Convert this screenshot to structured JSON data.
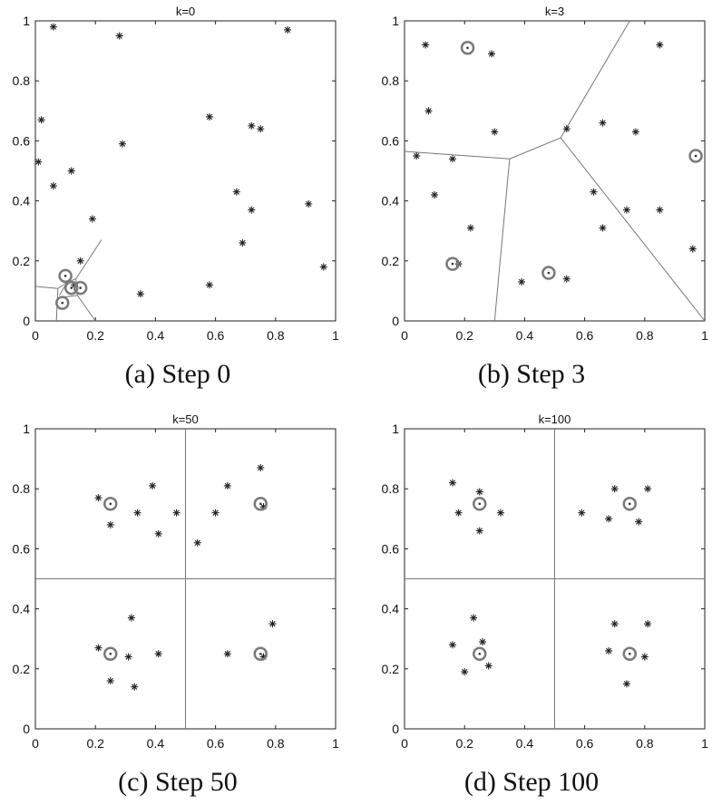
{
  "chart_data": [
    {
      "type": "scatter",
      "title": "k=0",
      "caption": "(a) Step 0",
      "xlim": [
        0,
        1
      ],
      "ylim": [
        0,
        1
      ],
      "xticks": [
        "0",
        "0.2",
        "0.4",
        "0.6",
        "0.8",
        "1"
      ],
      "yticks": [
        "0",
        "0.2",
        "0.4",
        "0.6",
        "0.8",
        "1"
      ],
      "points": [
        [
          0.06,
          0.98
        ],
        [
          0.28,
          0.95
        ],
        [
          0.84,
          0.97
        ],
        [
          0.02,
          0.67
        ],
        [
          0.58,
          0.68
        ],
        [
          0.72,
          0.65
        ],
        [
          0.75,
          0.64
        ],
        [
          0.29,
          0.59
        ],
        [
          0.01,
          0.53
        ],
        [
          0.12,
          0.5
        ],
        [
          0.06,
          0.45
        ],
        [
          0.67,
          0.43
        ],
        [
          0.91,
          0.39
        ],
        [
          0.72,
          0.37
        ],
        [
          0.19,
          0.34
        ],
        [
          0.69,
          0.26
        ],
        [
          0.15,
          0.2
        ],
        [
          0.96,
          0.18
        ],
        [
          0.58,
          0.12
        ],
        [
          0.35,
          0.09
        ],
        [
          0.13,
          0.12
        ]
      ],
      "centers": [
        [
          0.1,
          0.15
        ],
        [
          0.12,
          0.11
        ],
        [
          0.15,
          0.11
        ],
        [
          0.09,
          0.06
        ]
      ],
      "boundaries": [
        [
          [
            0.0,
            0.115
          ],
          [
            0.075,
            0.108
          ]
        ],
        [
          [
            0.075,
            0.108
          ],
          [
            0.105,
            0.128
          ]
        ],
        [
          [
            0.075,
            0.108
          ],
          [
            0.07,
            0.0
          ]
        ],
        [
          [
            0.105,
            0.128
          ],
          [
            0.135,
            0.14
          ]
        ],
        [
          [
            0.135,
            0.14
          ],
          [
            0.22,
            0.27
          ]
        ],
        [
          [
            0.105,
            0.128
          ],
          [
            0.08,
            0.085
          ]
        ],
        [
          [
            0.135,
            0.14
          ],
          [
            0.14,
            0.085
          ]
        ],
        [
          [
            0.14,
            0.085
          ],
          [
            0.1,
            0.08
          ]
        ],
        [
          [
            0.14,
            0.085
          ],
          [
            0.2,
            0.0
          ]
        ]
      ]
    },
    {
      "type": "scatter",
      "title": "k=3",
      "caption": "(b) Step 3",
      "xlim": [
        0,
        1
      ],
      "ylim": [
        0,
        1
      ],
      "xticks": [
        "0",
        "0.2",
        "0.4",
        "0.6",
        "0.8",
        "1"
      ],
      "yticks": [
        "0",
        "0.2",
        "0.4",
        "0.6",
        "0.8",
        "1"
      ],
      "points": [
        [
          0.07,
          0.92
        ],
        [
          0.29,
          0.89
        ],
        [
          0.85,
          0.92
        ],
        [
          0.08,
          0.7
        ],
        [
          0.66,
          0.66
        ],
        [
          0.77,
          0.63
        ],
        [
          0.3,
          0.63
        ],
        [
          0.54,
          0.64
        ],
        [
          0.04,
          0.55
        ],
        [
          0.16,
          0.54
        ],
        [
          0.1,
          0.42
        ],
        [
          0.63,
          0.43
        ],
        [
          0.74,
          0.37
        ],
        [
          0.85,
          0.37
        ],
        [
          0.22,
          0.31
        ],
        [
          0.66,
          0.31
        ],
        [
          0.96,
          0.24
        ],
        [
          0.18,
          0.19
        ],
        [
          0.39,
          0.13
        ],
        [
          0.54,
          0.14
        ]
      ],
      "centers": [
        [
          0.21,
          0.91
        ],
        [
          0.97,
          0.55
        ],
        [
          0.16,
          0.19
        ],
        [
          0.48,
          0.16
        ]
      ],
      "boundaries": [
        [
          [
            0.0,
            0.565
          ],
          [
            0.35,
            0.54
          ]
        ],
        [
          [
            0.35,
            0.54
          ],
          [
            0.52,
            0.61
          ]
        ],
        [
          [
            0.52,
            0.61
          ],
          [
            0.75,
            1.0
          ]
        ],
        [
          [
            0.35,
            0.54
          ],
          [
            0.3,
            0.0
          ]
        ],
        [
          [
            0.52,
            0.61
          ],
          [
            1.0,
            0.0
          ]
        ]
      ]
    },
    {
      "type": "scatter",
      "title": "k=50",
      "caption": "(c) Step 50",
      "xlim": [
        0,
        1
      ],
      "ylim": [
        0,
        1
      ],
      "xticks": [
        "0",
        "0.2",
        "0.4",
        "0.6",
        "0.8",
        "1"
      ],
      "yticks": [
        "0",
        "0.2",
        "0.4",
        "0.6",
        "0.8",
        "1"
      ],
      "points": [
        [
          0.75,
          0.87
        ],
        [
          0.39,
          0.81
        ],
        [
          0.64,
          0.81
        ],
        [
          0.21,
          0.77
        ],
        [
          0.34,
          0.72
        ],
        [
          0.47,
          0.72
        ],
        [
          0.6,
          0.72
        ],
        [
          0.25,
          0.68
        ],
        [
          0.41,
          0.65
        ],
        [
          0.54,
          0.62
        ],
        [
          0.76,
          0.74
        ],
        [
          0.32,
          0.37
        ],
        [
          0.79,
          0.35
        ],
        [
          0.21,
          0.27
        ],
        [
          0.31,
          0.24
        ],
        [
          0.41,
          0.25
        ],
        [
          0.64,
          0.25
        ],
        [
          0.76,
          0.24
        ],
        [
          0.25,
          0.16
        ],
        [
          0.33,
          0.14
        ]
      ],
      "centers": [
        [
          0.25,
          0.75
        ],
        [
          0.75,
          0.75
        ],
        [
          0.25,
          0.25
        ],
        [
          0.75,
          0.25
        ]
      ],
      "boundaries": [
        [
          [
            0.5,
            0.0
          ],
          [
            0.5,
            1.0
          ]
        ],
        [
          [
            0.0,
            0.5
          ],
          [
            1.0,
            0.5
          ]
        ]
      ]
    },
    {
      "type": "scatter",
      "title": "k=100",
      "caption": "(d) Step 100",
      "xlim": [
        0,
        1
      ],
      "ylim": [
        0,
        1
      ],
      "xticks": [
        "0",
        "0.2",
        "0.4",
        "0.6",
        "0.8",
        "1"
      ],
      "yticks": [
        "0",
        "0.2",
        "0.4",
        "0.6",
        "0.8",
        "1"
      ],
      "points": [
        [
          0.16,
          0.82
        ],
        [
          0.25,
          0.79
        ],
        [
          0.7,
          0.8
        ],
        [
          0.81,
          0.8
        ],
        [
          0.18,
          0.72
        ],
        [
          0.32,
          0.72
        ],
        [
          0.59,
          0.72
        ],
        [
          0.68,
          0.7
        ],
        [
          0.78,
          0.69
        ],
        [
          0.25,
          0.66
        ],
        [
          0.23,
          0.37
        ],
        [
          0.7,
          0.35
        ],
        [
          0.81,
          0.35
        ],
        [
          0.26,
          0.29
        ],
        [
          0.16,
          0.28
        ],
        [
          0.68,
          0.26
        ],
        [
          0.8,
          0.24
        ],
        [
          0.28,
          0.21
        ],
        [
          0.2,
          0.19
        ],
        [
          0.74,
          0.15
        ]
      ],
      "centers": [
        [
          0.25,
          0.75
        ],
        [
          0.75,
          0.75
        ],
        [
          0.25,
          0.25
        ],
        [
          0.75,
          0.25
        ]
      ],
      "boundaries": [
        [
          [
            0.5,
            0.0
          ],
          [
            0.5,
            1.0
          ]
        ],
        [
          [
            0.0,
            0.5
          ],
          [
            1.0,
            0.5
          ]
        ]
      ]
    }
  ]
}
